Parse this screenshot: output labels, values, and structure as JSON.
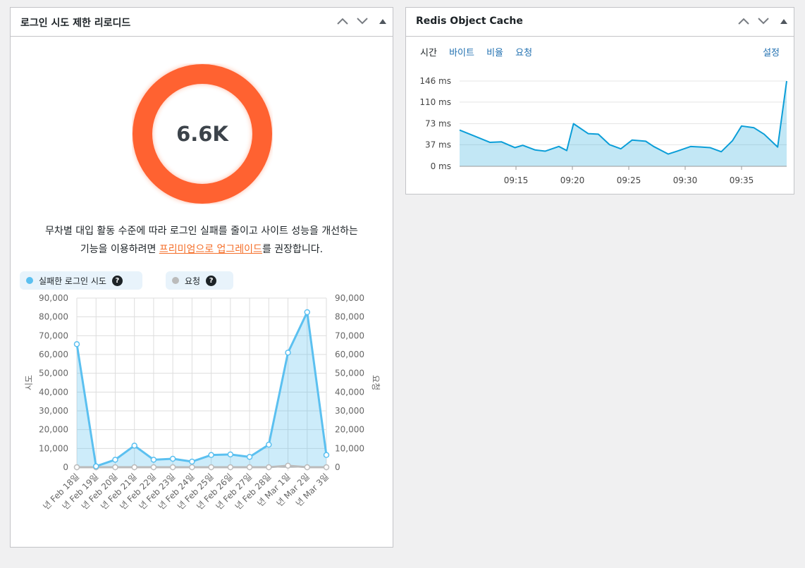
{
  "widget_login": {
    "title": "로그인 시도 제한 리로디드",
    "total": "6.6K",
    "notice_line1": "무차별 대입 활동 수준에 따라 로그인 실패를 줄이고 사이트 성능을 개선하는",
    "notice_line2_pre": "기능을 이용하려면 ",
    "notice_link": "프리미엄으로 업그레이드",
    "notice_line2_post": "를 권장합니다.",
    "legend_failed": "실패한 로그인 시도",
    "legend_requests": "요청",
    "help_glyph": "?",
    "colors": {
      "donut": "#ff6231",
      "failed": "#5bc0f0",
      "requests": "#bbbbbb"
    }
  },
  "widget_redis": {
    "title": "Redis Object Cache",
    "tabs": [
      "시간",
      "바이트",
      "비율",
      "요청"
    ],
    "settings": "설정"
  },
  "chart_data": [
    {
      "type": "line",
      "title": "",
      "ylabel": "시도",
      "y2label": "요청",
      "ylim": [
        0,
        90000
      ],
      "yticks": [
        "0",
        "10,000",
        "20,000",
        "30,000",
        "40,000",
        "50,000",
        "60,000",
        "70,000",
        "80,000",
        "90,000"
      ],
      "categories": [
        "년 Feb 18일",
        "년 Feb 19일",
        "년 Feb 20일",
        "년 Feb 21일",
        "년 Feb 22일",
        "년 Feb 23일",
        "년 Feb 24일",
        "년 Feb 25일",
        "년 Feb 26일",
        "년 Feb 27일",
        "년 Feb 28일",
        "년 Mar 1일",
        "년 Mar 2일",
        "년 Mar 3일"
      ],
      "series": [
        {
          "name": "실패한 로그인 시도",
          "values": [
            65500,
            500,
            4000,
            11500,
            4000,
            4500,
            3000,
            6500,
            6800,
            5500,
            12000,
            61000,
            82500,
            6500
          ]
        },
        {
          "name": "요청",
          "values": [
            0,
            0,
            0,
            0,
            0,
            0,
            0,
            0,
            0,
            0,
            0,
            800,
            0,
            0
          ]
        }
      ]
    },
    {
      "type": "area",
      "title": "",
      "ylabel": "ms",
      "ylim": [
        0,
        146
      ],
      "yticks": [
        "0 ms",
        "37 ms",
        "73 ms",
        "110 ms",
        "146 ms"
      ],
      "xticks": [
        "09:15",
        "09:20",
        "09:25",
        "09:30",
        "09:35"
      ],
      "xrange": [
        0,
        29
      ],
      "series": [
        {
          "name": "시간",
          "values": [
            62,
            52,
            41,
            42,
            32,
            36,
            28,
            26,
            34,
            27,
            73,
            56,
            55,
            37,
            30,
            45,
            43,
            34,
            21,
            26,
            34,
            33,
            32,
            25,
            44,
            69,
            66,
            55,
            33,
            146
          ],
          "x": [
            0,
            1.3,
            2.7,
            3.7,
            4.9,
            5.6,
            6.7,
            7.6,
            8.8,
            9.5,
            10.1,
            11.4,
            12.3,
            13.3,
            14.3,
            15.3,
            16.5,
            17.2,
            18.5,
            19.3,
            20.5,
            21.4,
            22.2,
            23.2,
            24.2,
            25.0,
            26.1,
            27.0,
            28.2,
            29.0
          ]
        }
      ]
    }
  ]
}
